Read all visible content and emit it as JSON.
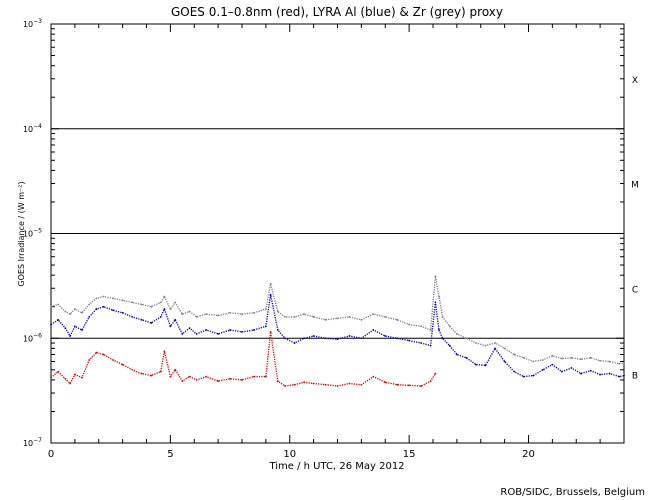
{
  "chart_data": {
    "type": "scatter",
    "title": "GOES 0.1–0.8nm (red), LYRA Al (blue) & Zr (grey) proxy",
    "xlabel": "Time / h UTC, 26 May 2012",
    "ylabel": "GOES Irradiance / (W m⁻²)",
    "y_scale": "log",
    "xlim": [
      0,
      24
    ],
    "ylim": [
      1e-07,
      0.001
    ],
    "grid": "horizontal lines at class boundaries",
    "x_ticks": [
      {
        "value": 0,
        "label": "0"
      },
      {
        "value": 5,
        "label": "5"
      },
      {
        "value": 10,
        "label": "10"
      },
      {
        "value": 15,
        "label": "15"
      },
      {
        "value": 20,
        "label": "20"
      }
    ],
    "y_ticks": [
      {
        "value": 1e-07,
        "base": "10",
        "exp": "−7"
      },
      {
        "value": 1e-06,
        "base": "10",
        "exp": "−6"
      },
      {
        "value": 1e-05,
        "base": "10",
        "exp": "−5"
      },
      {
        "value": 0.0001,
        "base": "10",
        "exp": "−4"
      },
      {
        "value": 0.001,
        "base": "10",
        "exp": "−3"
      }
    ],
    "class_labels": [
      {
        "label": "X",
        "y": 0.0003
      },
      {
        "label": "M",
        "y": 3e-05
      },
      {
        "label": "C",
        "y": 3e-06
      },
      {
        "label": "B",
        "y": 4.5e-07
      }
    ],
    "series": [
      {
        "color": "#808080",
        "x": [
          0,
          0.3,
          0.6,
          0.8,
          1.0,
          1.3,
          1.6,
          1.9,
          2.2,
          2.6,
          3.0,
          3.4,
          3.8,
          4.2,
          4.6,
          4.75,
          5.0,
          5.2,
          5.5,
          5.8,
          6.1,
          6.5,
          7.0,
          7.5,
          8.0,
          8.5,
          9.0,
          9.2,
          9.5,
          9.8,
          10.2,
          10.6,
          11.0,
          11.5,
          12.0,
          12.5,
          13.0,
          13.5,
          14.0,
          14.5,
          15.0,
          15.5,
          15.9,
          16.1,
          16.25,
          16.4,
          16.7,
          17.0,
          17.4,
          17.8,
          18.2,
          18.6,
          19.0,
          19.4,
          19.8,
          20.2,
          20.6,
          21.0,
          21.4,
          21.8,
          22.2,
          22.6,
          23.0,
          23.4,
          23.8,
          24.0
        ],
        "y": [
          2e-06,
          2.1e-06,
          1.8e-06,
          1.7e-06,
          1.9e-06,
          1.75e-06,
          2.1e-06,
          2.4e-06,
          2.5e-06,
          2.4e-06,
          2.3e-06,
          2.2e-06,
          2.1e-06,
          2e-06,
          2.2e-06,
          2.5e-06,
          1.9e-06,
          2.2e-06,
          1.7e-06,
          1.8e-06,
          1.6e-06,
          1.7e-06,
          1.65e-06,
          1.75e-06,
          1.7e-06,
          1.75e-06,
          1.9e-06,
          3.3e-06,
          1.8e-06,
          1.6e-06,
          1.6e-06,
          1.7e-06,
          1.6e-06,
          1.5e-06,
          1.55e-06,
          1.6e-06,
          1.5e-06,
          1.7e-06,
          1.6e-06,
          1.5e-06,
          1.35e-06,
          1.3e-06,
          1.2e-06,
          3.9e-06,
          2.5e-06,
          1.6e-06,
          1.3e-06,
          1.1e-06,
          1e-06,
          9e-07,
          8.5e-07,
          9e-07,
          8e-07,
          7e-07,
          6.5e-07,
          6e-07,
          6.2e-07,
          6.8e-07,
          6.4e-07,
          6.5e-07,
          6.3e-07,
          6.5e-07,
          6.1e-07,
          6e-07,
          5.7e-07,
          5.8e-07
        ]
      },
      {
        "color": "#0000c8",
        "x": [
          0,
          0.3,
          0.6,
          0.8,
          1.0,
          1.3,
          1.6,
          1.9,
          2.2,
          2.6,
          3.0,
          3.4,
          3.8,
          4.2,
          4.6,
          4.75,
          5.0,
          5.2,
          5.5,
          5.8,
          6.1,
          6.5,
          7.0,
          7.5,
          8.0,
          8.5,
          9.0,
          9.2,
          9.5,
          9.8,
          10.2,
          10.6,
          11.0,
          11.5,
          12.0,
          12.5,
          13.0,
          13.5,
          14.0,
          14.5,
          15.0,
          15.5,
          15.9,
          16.1,
          16.25,
          16.4,
          16.7,
          17.0,
          17.4,
          17.8,
          18.2,
          18.6,
          19.0,
          19.4,
          19.8,
          20.2,
          20.6,
          21.0,
          21.4,
          21.8,
          22.2,
          22.6,
          23.0,
          23.4,
          23.8,
          24.0
        ],
        "y": [
          1.35e-06,
          1.5e-06,
          1.25e-06,
          1.05e-06,
          1.3e-06,
          1.2e-06,
          1.6e-06,
          1.9e-06,
          2e-06,
          1.85e-06,
          1.75e-06,
          1.6e-06,
          1.5e-06,
          1.4e-06,
          1.6e-06,
          1.9e-06,
          1.3e-06,
          1.5e-06,
          1.1e-06,
          1.25e-06,
          1.1e-06,
          1.2e-06,
          1.1e-06,
          1.2e-06,
          1.15e-06,
          1.2e-06,
          1.3e-06,
          2.6e-06,
          1.2e-06,
          1e-06,
          9e-07,
          1e-06,
          1.05e-06,
          1e-06,
          9.8e-07,
          1.05e-06,
          1e-06,
          1.2e-06,
          1.05e-06,
          1e-06,
          9.5e-07,
          9e-07,
          8.5e-07,
          2.2e-06,
          1.2e-06,
          1e-06,
          8.5e-07,
          7e-07,
          6.5e-07,
          5.6e-07,
          5.5e-07,
          8e-07,
          6e-07,
          4.8e-07,
          4.3e-07,
          4.4e-07,
          5e-07,
          5.6e-07,
          4.8e-07,
          5.2e-07,
          4.6e-07,
          4.9e-07,
          4.5e-07,
          4.6e-07,
          4.3e-07,
          4.4e-07
        ]
      },
      {
        "color": "#e00000",
        "x": [
          0,
          0.3,
          0.6,
          0.8,
          1.0,
          1.3,
          1.6,
          1.9,
          2.2,
          2.6,
          3.0,
          3.4,
          3.8,
          4.2,
          4.6,
          4.75,
          5.0,
          5.2,
          5.5,
          5.8,
          6.1,
          6.5,
          7.0,
          7.5,
          8.0,
          8.5,
          9.0,
          9.2,
          9.5,
          9.8,
          10.2,
          10.6,
          11.0,
          11.5,
          12.0,
          12.5,
          13.0,
          13.5,
          14.0,
          14.5,
          15.0,
          15.5,
          15.9,
          16.1
        ],
        "y": [
          4.2e-07,
          4.8e-07,
          4.1e-07,
          3.7e-07,
          4.5e-07,
          4.2e-07,
          6.2e-07,
          7.3e-07,
          7e-07,
          6.2e-07,
          5.6e-07,
          5e-07,
          4.6e-07,
          4.4e-07,
          4.8e-07,
          7.5e-07,
          4.3e-07,
          5e-07,
          3.9e-07,
          4.3e-07,
          4e-07,
          4.3e-07,
          3.9e-07,
          4.1e-07,
          4e-07,
          4.3e-07,
          4.3e-07,
          1.15e-06,
          3.9e-07,
          3.5e-07,
          3.6e-07,
          3.8e-07,
          3.7e-07,
          3.6e-07,
          3.5e-07,
          3.7e-07,
          3.6e-07,
          4.3e-07,
          3.8e-07,
          3.6e-07,
          3.55e-07,
          3.5e-07,
          3.9e-07,
          4.6e-07
        ]
      }
    ],
    "credit": "ROB/SIDC, Brussels, Belgium"
  }
}
